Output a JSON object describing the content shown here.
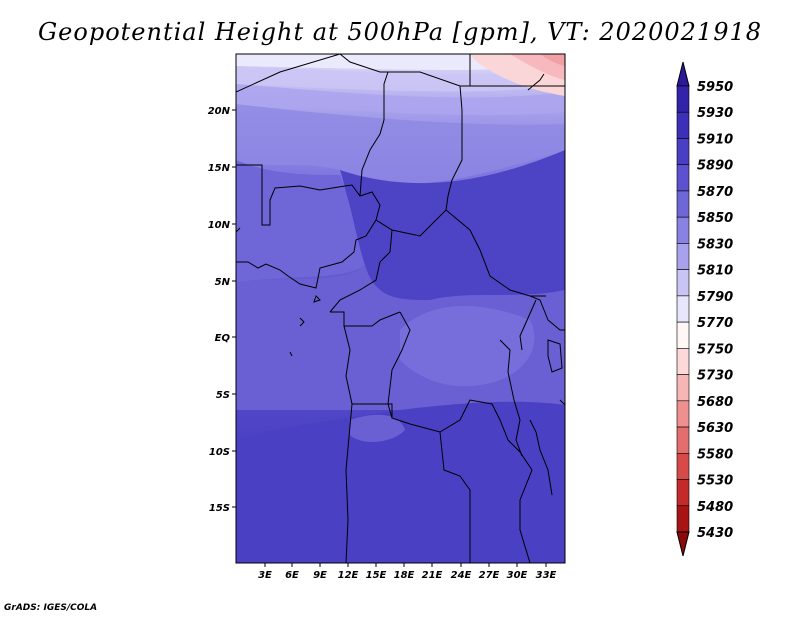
{
  "title": "Geopotential Height at 500hPa [gpm], VT: 2020021918",
  "credit": "GrADS: IGES/COLA",
  "map": {
    "lon_labels": [
      "3E",
      "6E",
      "9E",
      "12E",
      "15E",
      "18E",
      "21E",
      "24E",
      "27E",
      "30E",
      "33E"
    ],
    "lat_labels": [
      "20N",
      "15N",
      "10N",
      "5N",
      "EQ",
      "5S",
      "10S",
      "15S"
    ],
    "extent": {
      "lon": [
        0.5,
        34.5
      ],
      "lat": [
        -19.5,
        24.5
      ]
    }
  },
  "colorbar": {
    "levels": [
      "5950",
      "5930",
      "5910",
      "5890",
      "5870",
      "5850",
      "5830",
      "5810",
      "5790",
      "5770",
      "5750",
      "5730",
      "5680",
      "5630",
      "5580",
      "5530",
      "5480",
      "5430"
    ],
    "colors": [
      "#2a1a9a",
      "#3322aa",
      "#3d2fb8",
      "#4a3fc4",
      "#5c52cf",
      "#6f66d8",
      "#8a82e2",
      "#a8a2ec",
      "#c8c4f4",
      "#e8e6fb",
      "#fff6f6",
      "#fcd8d8",
      "#f6b6b6",
      "#ee9090",
      "#e46e6e",
      "#d84a4a",
      "#c42a2a",
      "#a81414",
      "#8c0a0a"
    ]
  },
  "fields": {
    "gradient_colors": [
      "#dcdaf8",
      "#b8b2f0",
      "#9a92e6",
      "#7c72dc",
      "#6a60d4",
      "#5e54cc",
      "#4f45c4",
      "#4338bd"
    ],
    "warm_corner_color": "#fbd6d8"
  }
}
